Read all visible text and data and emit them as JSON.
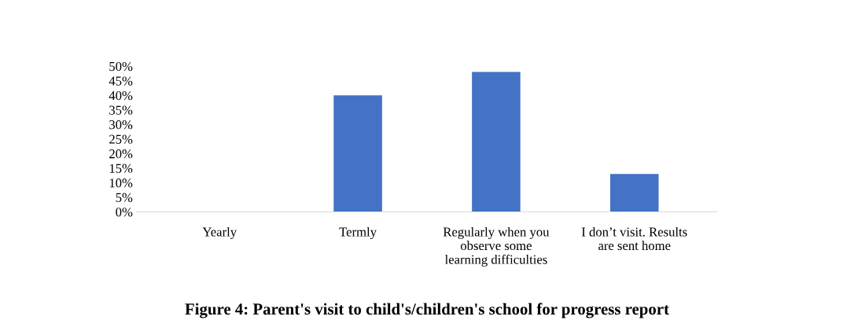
{
  "chart_data": {
    "type": "bar",
    "title": "Figure 4: Parent's visit to child's/children's school for progress report",
    "categories": [
      "Yearly",
      "Termly",
      "Regularly when you\nobserve some\nlearning difficulties",
      "I don’t visit. Results\nare sent home"
    ],
    "values": [
      0,
      40,
      48,
      13
    ],
    "color": "#4472c4",
    "ylim": [
      0,
      50
    ],
    "yticks": [
      {
        "value": 0,
        "label": "0%"
      },
      {
        "value": 5,
        "label": "5%"
      },
      {
        "value": 10,
        "label": "10%"
      },
      {
        "value": 15,
        "label": "15%"
      },
      {
        "value": 20,
        "label": "20%"
      },
      {
        "value": 25,
        "label": "25%"
      },
      {
        "value": 30,
        "label": "30%"
      },
      {
        "value": 35,
        "label": "35%"
      },
      {
        "value": 40,
        "label": "40%"
      },
      {
        "value": 45,
        "label": "45%"
      },
      {
        "value": 50,
        "label": "50%"
      }
    ],
    "grid": false,
    "legend": false
  }
}
